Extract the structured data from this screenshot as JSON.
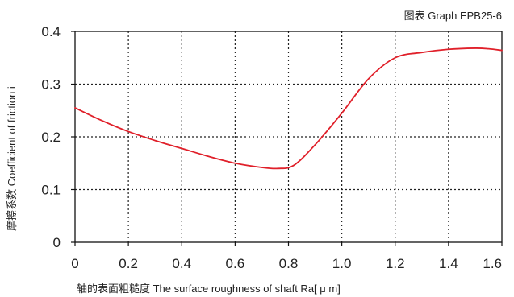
{
  "graph_code": "图表 Graph EPB25-6",
  "chart_data": {
    "type": "line",
    "title": "",
    "xlabel": "轴的表面粗糙度 The surface roughness of shaft  Ra[ μ m]",
    "ylabel": "摩擦系数 Coefficient of friction i",
    "xlim": [
      0,
      1.6
    ],
    "ylim": [
      0,
      0.4
    ],
    "x_ticks": [
      "0",
      "0.2",
      "0.4",
      "0.6",
      "0.8",
      "1.0",
      "1.2",
      "1.4",
      "1.6"
    ],
    "y_ticks": [
      "0",
      "0.1",
      "0.2",
      "0.3",
      "0.4"
    ],
    "grid": true,
    "line_color": "#e0202a",
    "series": [
      {
        "x": [
          0.0,
          0.1,
          0.2,
          0.3,
          0.4,
          0.5,
          0.6,
          0.7,
          0.76,
          0.82,
          0.9,
          1.0,
          1.1,
          1.2,
          1.3,
          1.4,
          1.5,
          1.55,
          1.6
        ],
        "y": [
          0.255,
          0.231,
          0.21,
          0.193,
          0.178,
          0.163,
          0.15,
          0.142,
          0.14,
          0.146,
          0.185,
          0.245,
          0.31,
          0.35,
          0.36,
          0.366,
          0.368,
          0.367,
          0.364
        ]
      }
    ]
  }
}
